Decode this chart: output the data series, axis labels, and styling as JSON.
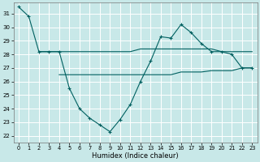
{
  "xlabel": "Humidex (Indice chaleur)",
  "background_color": "#c8e8e8",
  "grid_color": "#ffffff",
  "line_color": "#006060",
  "xlim": [
    -0.5,
    23.5
  ],
  "ylim": [
    21.5,
    31.8
  ],
  "yticks": [
    22,
    23,
    24,
    25,
    26,
    27,
    28,
    29,
    30,
    31
  ],
  "xticks": [
    0,
    1,
    2,
    3,
    4,
    5,
    6,
    7,
    8,
    9,
    10,
    11,
    12,
    13,
    14,
    15,
    16,
    17,
    18,
    19,
    20,
    21,
    22,
    23
  ],
  "series": [
    {
      "x": [
        0,
        1,
        2,
        3,
        4,
        5,
        6,
        7,
        8,
        9,
        10,
        11,
        12,
        13,
        14,
        15,
        16,
        17,
        18,
        19,
        20,
        21,
        22,
        23
      ],
      "y": [
        31.5,
        30.8,
        28.2,
        28.2,
        28.2,
        25.5,
        24.0,
        23.3,
        22.8,
        22.3,
        23.2,
        24.3,
        26.0,
        27.5,
        29.3,
        29.2,
        30.2,
        29.6,
        28.8,
        28.2,
        28.2,
        28.0,
        27.0,
        27.0
      ],
      "marker": true
    },
    {
      "x": [
        2,
        4,
        5,
        6,
        7,
        8,
        9,
        10,
        11,
        12,
        13,
        14,
        18,
        19,
        20,
        21,
        22,
        23
      ],
      "y": [
        28.2,
        28.2,
        28.2,
        28.2,
        28.2,
        28.2,
        28.2,
        28.2,
        28.2,
        28.4,
        28.4,
        28.4,
        28.4,
        28.4,
        28.2,
        28.2,
        28.2,
        28.2
      ],
      "marker": false
    },
    {
      "x": [
        4,
        5,
        6,
        7,
        8,
        9,
        10,
        11,
        12,
        13,
        14,
        15,
        16,
        17,
        18,
        19,
        20,
        21,
        22,
        23
      ],
      "y": [
        26.5,
        26.5,
        26.5,
        26.5,
        26.5,
        26.5,
        26.5,
        26.5,
        26.5,
        26.5,
        26.5,
        26.5,
        26.7,
        26.7,
        26.7,
        26.8,
        26.8,
        26.8,
        27.0,
        27.0
      ],
      "marker": false
    }
  ]
}
